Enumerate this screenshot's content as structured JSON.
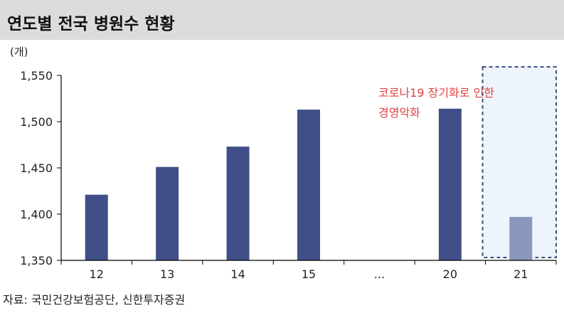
{
  "title": "연도별 전국 병원수 현황",
  "source": "자료: 국민건강보험공단, 신한투자증권",
  "colors": {
    "bar": "#414f88",
    "bar_estimate": "#8a97bc",
    "annotation": "#e04040",
    "highlight_border": "#404f80",
    "highlight_fill": "#eef4fb",
    "title_background": "#dcdcdc"
  },
  "chart_data": {
    "type": "bar",
    "ylabel": "(개)",
    "ylim": [
      1350,
      1550
    ],
    "yticks": [
      "1,550",
      "1,500",
      "1,450",
      "1,400",
      "1,350"
    ],
    "ytick_values": [
      1550,
      1500,
      1450,
      1400,
      1350
    ],
    "categories": [
      "12",
      "13",
      "14",
      "15",
      "...",
      "20",
      "21"
    ],
    "values": [
      1421,
      1451,
      1473,
      1513,
      null,
      1514,
      1397
    ],
    "highlighted_category": "21",
    "annotation": [
      "코로나19 장기화로 인한",
      "경영악화"
    ],
    "grid": false
  }
}
